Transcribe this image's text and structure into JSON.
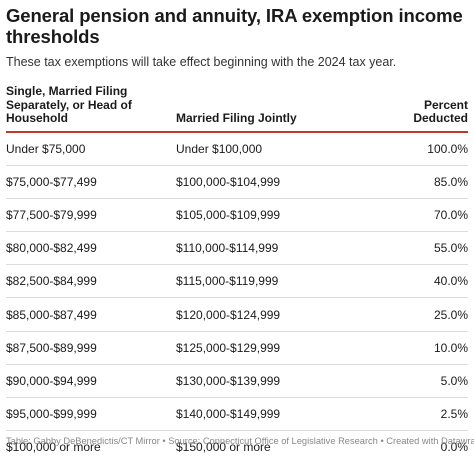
{
  "title": "General pension and annuity, IRA exemption income thresholds",
  "subtitle": "These tax exemptions will take effect beginning with the 2024 tax year.",
  "table": {
    "headers": [
      "Single, Married Filing Separately, or Head of Household",
      "Married Filing Jointly",
      "Percent Deducted"
    ],
    "rows": [
      [
        "Under $75,000",
        "Under $100,000",
        "100.0%"
      ],
      [
        "$75,000-$77,499",
        "$100,000-$104,999",
        "85.0%"
      ],
      [
        "$77,500-$79,999",
        "$105,000-$109,999",
        "70.0%"
      ],
      [
        "$80,000-$82,499",
        "$110,000-$114,999",
        "55.0%"
      ],
      [
        "$82,500-$84,999",
        "$115,000-$119,999",
        "40.0%"
      ],
      [
        "$85,000-$87,499",
        "$120,000-$124,999",
        "25.0%"
      ],
      [
        "$87,500-$89,999",
        "$125,000-$129,999",
        "10.0%"
      ],
      [
        "$90,000-$94,999",
        "$130,000-$139,999",
        "5.0%"
      ],
      [
        "$95,000-$99,999",
        "$140,000-$149,999",
        "2.5%"
      ],
      [
        "$100,000 or more",
        "$150,000 or more",
        "0.0%"
      ]
    ]
  },
  "footer": "Table: Gabby DeBenedictis/CT Mirror • Source: Connecticut Office of Legislative Research • Created with Datawrapper",
  "colors": {
    "header_rule": "#c0392b",
    "row_rule": "#dcdcdc",
    "footer_text": "#888888"
  }
}
